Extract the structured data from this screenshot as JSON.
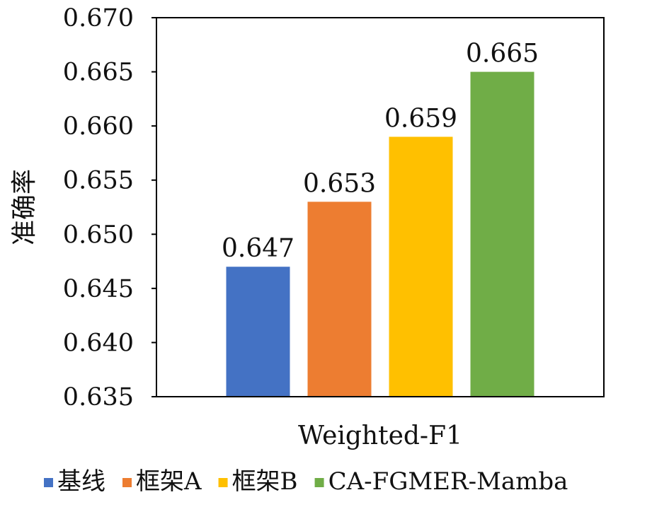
{
  "chart_data": {
    "type": "bar",
    "title": "",
    "xlabel": "Weighted-F1",
    "ylabel": "准确率",
    "ylim": [
      0.635,
      0.67
    ],
    "yticks": [
      "0.635",
      "0.640",
      "0.645",
      "0.650",
      "0.655",
      "0.660",
      "0.665",
      "0.670"
    ],
    "grid": false,
    "legend_position": "bottom",
    "series": [
      {
        "name": "基线",
        "values": [
          0.647
        ],
        "label": "0.647",
        "color": "#4472C4"
      },
      {
        "name": "框架A",
        "values": [
          0.653
        ],
        "label": "0.653",
        "color": "#ED7D31"
      },
      {
        "name": "框架B",
        "values": [
          0.659
        ],
        "label": "0.659",
        "color": "#FFC000"
      },
      {
        "name": "CA-FGMER-Mamba",
        "values": [
          0.665
        ],
        "label": "0.665",
        "color": "#70AD47"
      }
    ]
  }
}
